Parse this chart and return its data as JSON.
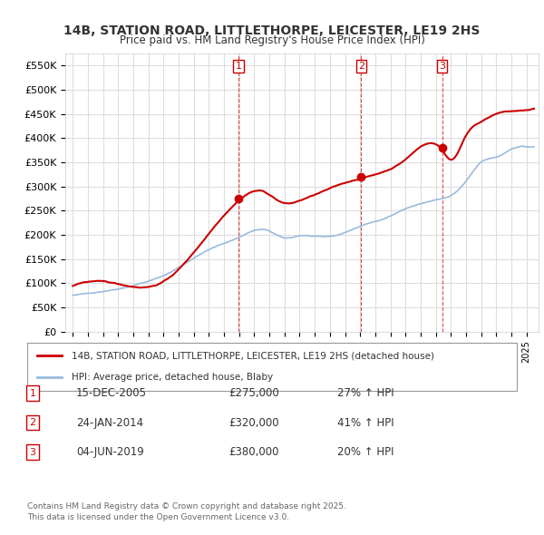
{
  "title": "14B, STATION ROAD, LITTLETHORPE, LEICESTER, LE19 2HS",
  "subtitle": "Price paid vs. HM Land Registry's House Price Index (HPI)",
  "ylabel": "",
  "background_color": "#ffffff",
  "plot_bg_color": "#ffffff",
  "grid_color": "#dddddd",
  "red_line_color": "#cc0000",
  "blue_line_color": "#99bbdd",
  "sale_marker_color": "#cc0000",
  "sale_points": [
    {
      "year": 2005.96,
      "price": 275000,
      "label": "1"
    },
    {
      "year": 2014.07,
      "price": 320000,
      "label": "2"
    },
    {
      "year": 2019.42,
      "price": 380000,
      "label": "3"
    }
  ],
  "legend_red_label": "14B, STATION ROAD, LITTLETHORPE, LEICESTER, LE19 2HS (detached house)",
  "legend_blue_label": "HPI: Average price, detached house, Blaby",
  "table_rows": [
    {
      "num": "1",
      "date": "15-DEC-2005",
      "price": "£275,000",
      "change": "27% ↑ HPI"
    },
    {
      "num": "2",
      "date": "24-JAN-2014",
      "price": "£320,000",
      "change": "41% ↑ HPI"
    },
    {
      "num": "3",
      "date": "04-JUN-2019",
      "price": "£380,000",
      "change": "20% ↑ HPI"
    }
  ],
  "footer": "Contains HM Land Registry data © Crown copyright and database right 2025.\nThis data is licensed under the Open Government Licence v3.0.",
  "ylim": [
    0,
    575000
  ],
  "yticks": [
    0,
    50000,
    100000,
    150000,
    200000,
    250000,
    300000,
    350000,
    400000,
    450000,
    500000,
    550000
  ],
  "xlim_start": 1994.5,
  "xlim_end": 2025.8
}
